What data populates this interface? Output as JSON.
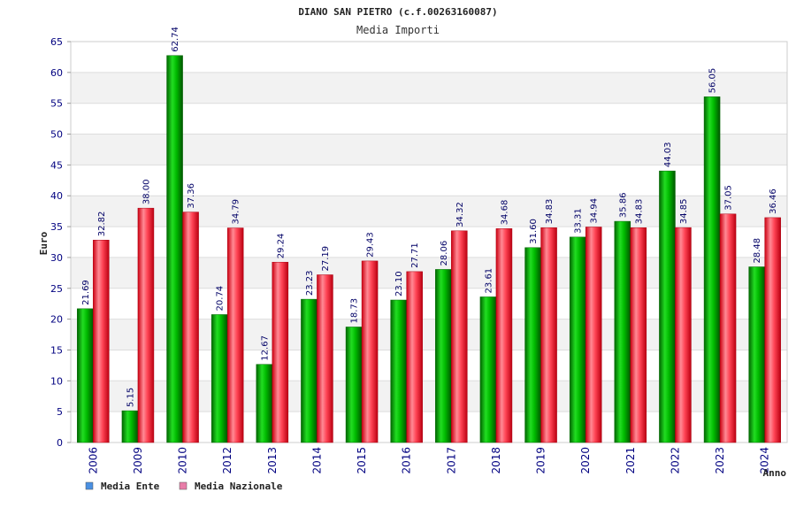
{
  "chart_data": {
    "type": "bar",
    "title": "DIANO SAN PIETRO (c.f.00263160087)",
    "subtitle": "Media Importi",
    "xlabel": "Anno",
    "ylabel": "Euro",
    "ylim": [
      0,
      65
    ],
    "ytick_step": 5,
    "grid": true,
    "legend_position": "bottom-left",
    "categories": [
      "2006",
      "2009",
      "2010",
      "2012",
      "2013",
      "2014",
      "2015",
      "2016",
      "2017",
      "2018",
      "2019",
      "2020",
      "2021",
      "2022",
      "2023",
      "2024"
    ],
    "series": [
      {
        "name": "Media Ente",
        "color": "#00cc00",
        "legend_color": "#4a90e2",
        "values": [
          21.69,
          5.15,
          62.74,
          20.74,
          12.67,
          23.23,
          18.73,
          23.1,
          28.06,
          23.61,
          31.6,
          33.31,
          35.86,
          44.03,
          56.05,
          28.48
        ],
        "labels": [
          "21.69",
          "5.15",
          "62.74",
          "20.74",
          "12.67",
          "23.23",
          "18.73",
          "23.10",
          "28.06",
          "23.61",
          "31.60",
          "33.31",
          "35.86",
          "44.03",
          "56.05",
          "28.48"
        ]
      },
      {
        "name": "Media Nazionale",
        "color": "#ee2233",
        "legend_color": "#e87da8",
        "values": [
          32.82,
          38.0,
          37.36,
          34.79,
          29.24,
          27.19,
          29.43,
          27.71,
          34.32,
          34.68,
          34.83,
          34.94,
          34.83,
          34.85,
          37.05,
          36.46
        ],
        "labels": [
          "32.82",
          "38.00",
          "37.36",
          "34.79",
          "29.24",
          "27.19",
          "29.43",
          "27.71",
          "34.32",
          "34.68",
          "34.83",
          "34.94",
          "34.83",
          "34.85",
          "37.05",
          "36.46"
        ]
      }
    ]
  }
}
